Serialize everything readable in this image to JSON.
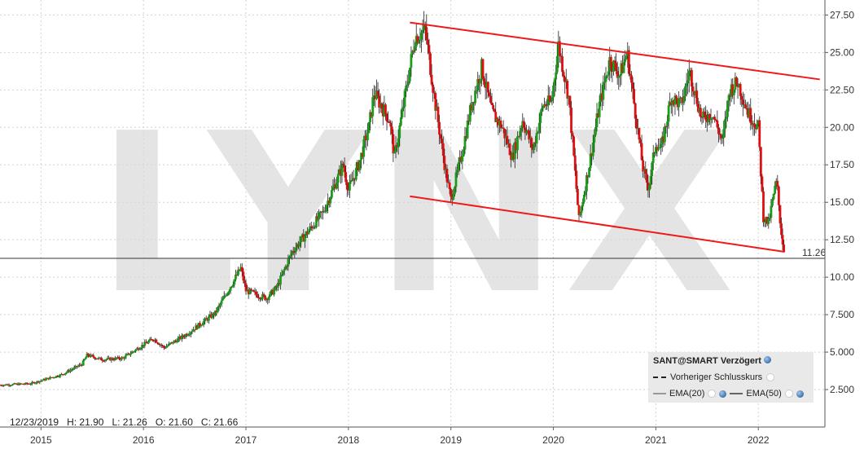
{
  "watermark": "LYNX",
  "info_bar": {
    "date": "12/23/2019",
    "high": "H: 21.90",
    "low": "L: 21.26",
    "open": "O: 21.60",
    "close": "C: 21.66"
  },
  "legend": {
    "title": "SANT@SMART Verzögert",
    "prev_close_label": "Vorheriger Schlusskurs",
    "ema20_label": "EMA(20)",
    "ema50_label": "EMA(50)"
  },
  "chart_data": {
    "type": "candlestick",
    "instrument": "SANT@SMART",
    "x_ticks": [
      "2015",
      "2016",
      "2017",
      "2018",
      "2019",
      "2020",
      "2021",
      "2022"
    ],
    "y_ticks": [
      "2.500",
      "5.000",
      "7.500",
      "10.00",
      "12.50",
      "15.00",
      "17.50",
      "20.00",
      "22.50",
      "25.00",
      "27.50"
    ],
    "ylim": [
      0,
      28.5
    ],
    "xlim": [
      2014.6,
      2022.65
    ],
    "current_price": 11.26,
    "current_price_label": "11.26",
    "price_path": [
      [
        2014.6,
        2.8
      ],
      [
        2014.9,
        2.9
      ],
      [
        2015.0,
        3.1
      ],
      [
        2015.2,
        3.5
      ],
      [
        2015.4,
        4.2
      ],
      [
        2015.45,
        4.8
      ],
      [
        2015.6,
        4.5
      ],
      [
        2015.8,
        4.6
      ],
      [
        2016.0,
        5.5
      ],
      [
        2016.1,
        5.9
      ],
      [
        2016.2,
        5.3
      ],
      [
        2016.4,
        6.1
      ],
      [
        2016.5,
        6.6
      ],
      [
        2016.7,
        7.6
      ],
      [
        2016.85,
        9.4
      ],
      [
        2016.95,
        10.6
      ],
      [
        2017.0,
        9.1
      ],
      [
        2017.2,
        8.6
      ],
      [
        2017.3,
        9.3
      ],
      [
        2017.45,
        11.7
      ],
      [
        2017.6,
        13.0
      ],
      [
        2017.75,
        14.3
      ],
      [
        2017.85,
        15.9
      ],
      [
        2017.95,
        17.5
      ],
      [
        2018.0,
        15.8
      ],
      [
        2018.1,
        17.5
      ],
      [
        2018.2,
        20.0
      ],
      [
        2018.25,
        22.3
      ],
      [
        2018.4,
        20.5
      ],
      [
        2018.45,
        18.0
      ],
      [
        2018.55,
        22.0
      ],
      [
        2018.65,
        26.0
      ],
      [
        2018.75,
        26.5
      ],
      [
        2018.85,
        21.5
      ],
      [
        2018.95,
        17.0
      ],
      [
        2019.0,
        15.2
      ],
      [
        2019.1,
        18.0
      ],
      [
        2019.2,
        21.5
      ],
      [
        2019.3,
        24.0
      ],
      [
        2019.4,
        21.0
      ],
      [
        2019.5,
        20.0
      ],
      [
        2019.6,
        18.0
      ],
      [
        2019.7,
        20.5
      ],
      [
        2019.8,
        18.5
      ],
      [
        2019.9,
        21.5
      ],
      [
        2019.98,
        21.66
      ],
      [
        2020.05,
        25.5
      ],
      [
        2020.15,
        22.0
      ],
      [
        2020.2,
        18.0
      ],
      [
        2020.25,
        13.8
      ],
      [
        2020.35,
        17.5
      ],
      [
        2020.45,
        21.5
      ],
      [
        2020.55,
        24.5
      ],
      [
        2020.65,
        23.5
      ],
      [
        2020.72,
        25.0
      ],
      [
        2020.8,
        21.0
      ],
      [
        2020.88,
        17.0
      ],
      [
        2020.93,
        16.0
      ],
      [
        2021.0,
        19.0
      ],
      [
        2021.05,
        18.5
      ],
      [
        2021.15,
        22.0
      ],
      [
        2021.25,
        21.5
      ],
      [
        2021.33,
        23.8
      ],
      [
        2021.45,
        20.5
      ],
      [
        2021.55,
        21.0
      ],
      [
        2021.65,
        19.0
      ],
      [
        2021.72,
        22.5
      ],
      [
        2021.8,
        23.0
      ],
      [
        2021.9,
        21.0
      ],
      [
        2022.0,
        20.0
      ],
      [
        2022.05,
        14.0
      ],
      [
        2022.1,
        13.6
      ],
      [
        2022.15,
        15.5
      ],
      [
        2022.18,
        16.4
      ],
      [
        2022.22,
        13.2
      ],
      [
        2022.26,
        11.26
      ]
    ],
    "trend_lines": [
      {
        "x": [
          2018.6,
          2022.6
        ],
        "y": [
          27.0,
          23.2
        ]
      },
      {
        "x": [
          2018.6,
          2022.25
        ],
        "y": [
          15.4,
          11.7
        ]
      }
    ],
    "colors": {
      "up": "#1a9e1a",
      "down": "#e01010",
      "trend": "#f01818",
      "grid": "#d2d2d2",
      "price_line": "#333333"
    },
    "grid": true
  }
}
